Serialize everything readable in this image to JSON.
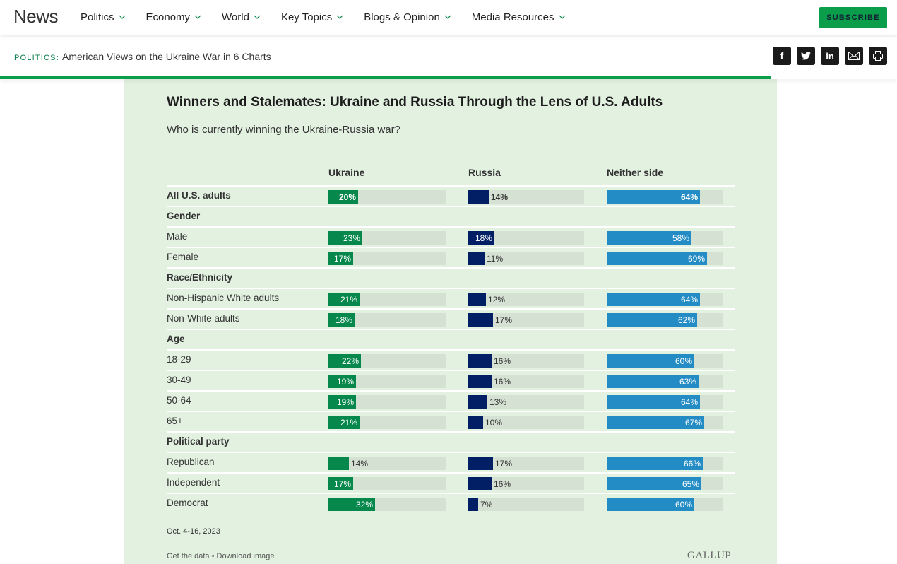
{
  "nav": {
    "brand": "News",
    "items": [
      "Politics",
      "Economy",
      "World",
      "Key Topics",
      "Blogs & Opinion",
      "Media Resources"
    ],
    "subscribe": "SUBSCRIBE"
  },
  "breadcrumb": {
    "section": "POLITICS:",
    "title": "American Views on the Ukraine War in 6 Charts"
  },
  "share_icons": [
    "facebook-icon",
    "twitter-icon",
    "linkedin-icon",
    "email-icon",
    "print-icon"
  ],
  "reading_progress": 0.86,
  "colors": {
    "ukraine": "#06874c",
    "russia": "#021f66",
    "neither": "#238cc4",
    "accent": "#0a9e4a"
  },
  "chart_data": {
    "type": "bar",
    "title": "Winners and Stalemates: Ukraine and Russia Through the Lens of U.S. Adults",
    "subtitle": "Who is currently winning the Ukraine-Russia war?",
    "series_names": [
      "Ukraine",
      "Russia",
      "Neither side"
    ],
    "scale_max": 80,
    "rows": [
      {
        "label": "All U.S. adults",
        "kind": "total",
        "values": [
          20,
          14,
          64
        ],
        "display": [
          "20%",
          "14%",
          "64%"
        ],
        "inside": [
          true,
          false,
          true
        ]
      },
      {
        "label": "Gender",
        "kind": "category"
      },
      {
        "label": "Male",
        "kind": "item",
        "values": [
          23,
          18,
          58
        ],
        "display": [
          "23%",
          "18%",
          "58%"
        ],
        "inside": [
          true,
          true,
          true
        ]
      },
      {
        "label": "Female",
        "kind": "item",
        "values": [
          17,
          11,
          69
        ],
        "display": [
          "17%",
          "11%",
          "69%"
        ],
        "inside": [
          true,
          false,
          true
        ]
      },
      {
        "label": "Race/Ethnicity",
        "kind": "category"
      },
      {
        "label": "Non-Hispanic White adults",
        "kind": "item",
        "values": [
          21,
          12,
          64
        ],
        "display": [
          "21%",
          "12%",
          "64%"
        ],
        "inside": [
          true,
          false,
          true
        ]
      },
      {
        "label": "Non-White adults",
        "kind": "item",
        "values": [
          18,
          17,
          62
        ],
        "display": [
          "18%",
          "17%",
          "62%"
        ],
        "inside": [
          true,
          false,
          true
        ]
      },
      {
        "label": "Age",
        "kind": "category"
      },
      {
        "label": "18-29",
        "kind": "item",
        "values": [
          22,
          16,
          60
        ],
        "display": [
          "22%",
          "16%",
          "60%"
        ],
        "inside": [
          true,
          false,
          true
        ]
      },
      {
        "label": "30-49",
        "kind": "item",
        "values": [
          19,
          16,
          63
        ],
        "display": [
          "19%",
          "16%",
          "63%"
        ],
        "inside": [
          true,
          false,
          true
        ]
      },
      {
        "label": "50-64",
        "kind": "item",
        "values": [
          19,
          13,
          64
        ],
        "display": [
          "19%",
          "13%",
          "64%"
        ],
        "inside": [
          true,
          false,
          true
        ]
      },
      {
        "label": "65+",
        "kind": "item",
        "values": [
          21,
          10,
          67
        ],
        "display": [
          "21%",
          "10%",
          "67%"
        ],
        "inside": [
          true,
          false,
          true
        ]
      },
      {
        "label": "Political party",
        "kind": "category"
      },
      {
        "label": "Republican",
        "kind": "item",
        "values": [
          14,
          17,
          66
        ],
        "display": [
          "14%",
          "17%",
          "66%"
        ],
        "inside": [
          false,
          false,
          true
        ]
      },
      {
        "label": "Independent",
        "kind": "item",
        "values": [
          17,
          16,
          65
        ],
        "display": [
          "17%",
          "16%",
          "65%"
        ],
        "inside": [
          true,
          false,
          true
        ]
      },
      {
        "label": "Democrat",
        "kind": "item",
        "values": [
          32,
          7,
          60
        ],
        "display": [
          "32%",
          "7%",
          "60%"
        ],
        "inside": [
          true,
          false,
          true
        ]
      }
    ]
  },
  "footer": {
    "date": "Oct. 4-16, 2023",
    "get_data": "Get the data",
    "separator": "•",
    "download": "Download image",
    "logo": "GALLUP"
  }
}
